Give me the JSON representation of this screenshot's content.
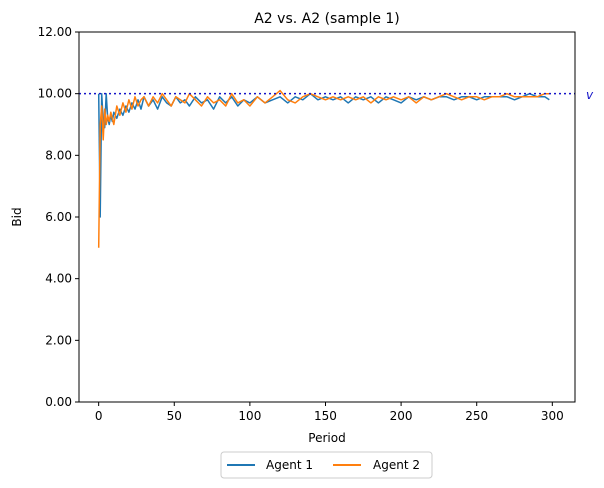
{
  "chart_data": {
    "type": "line",
    "title": "A2 vs. A2 (sample 1)",
    "xlabel": "Period",
    "ylabel": "Bid",
    "xlim": [
      -13,
      315
    ],
    "ylim": [
      0,
      12
    ],
    "x_ticks": [
      0,
      50,
      100,
      150,
      200,
      250,
      300
    ],
    "y_ticks": [
      0,
      2,
      4,
      6,
      8,
      10,
      12
    ],
    "y_tick_labels": [
      "0.00",
      "2.00",
      "4.00",
      "6.00",
      "8.00",
      "10.00",
      "12.00"
    ],
    "grid": false,
    "legend_placement": "bottom-center",
    "reference_line": {
      "y": 10.0,
      "label": "v",
      "style": "dotted",
      "color": "#1414c8"
    },
    "series": [
      {
        "name": "Agent 1",
        "color": "#1f77b4",
        "x": [
          0,
          1,
          2,
          3,
          4,
          5,
          6,
          7,
          8,
          9,
          10,
          12,
          14,
          16,
          18,
          20,
          22,
          24,
          26,
          28,
          30,
          33,
          36,
          39,
          42,
          45,
          48,
          51,
          54,
          57,
          60,
          64,
          68,
          72,
          76,
          80,
          84,
          88,
          92,
          96,
          100,
          105,
          110,
          115,
          120,
          125,
          130,
          135,
          140,
          145,
          150,
          155,
          160,
          165,
          170,
          175,
          180,
          185,
          190,
          195,
          200,
          205,
          210,
          215,
          220,
          225,
          230,
          235,
          240,
          245,
          250,
          255,
          260,
          265,
          270,
          275,
          280,
          285,
          290,
          295,
          298
        ],
        "y": [
          10.0,
          6.0,
          10.0,
          9.1,
          8.9,
          10.0,
          9.2,
          9.0,
          9.3,
          9.1,
          9.4,
          9.2,
          9.5,
          9.3,
          9.6,
          9.4,
          9.7,
          9.5,
          9.8,
          9.5,
          9.9,
          9.6,
          9.8,
          9.5,
          9.9,
          9.7,
          9.6,
          9.9,
          9.7,
          9.8,
          9.6,
          9.9,
          9.7,
          9.8,
          9.5,
          9.9,
          9.7,
          9.9,
          9.6,
          9.8,
          9.7,
          9.9,
          9.7,
          9.8,
          9.9,
          9.7,
          9.9,
          9.8,
          10.0,
          9.8,
          9.9,
          9.8,
          9.9,
          9.7,
          9.9,
          9.8,
          9.9,
          9.7,
          9.9,
          9.8,
          9.7,
          9.9,
          9.8,
          9.9,
          9.8,
          9.9,
          9.9,
          9.8,
          9.9,
          9.9,
          9.8,
          9.9,
          9.9,
          9.9,
          9.9,
          9.8,
          9.9,
          10.0,
          9.9,
          9.9,
          9.8
        ]
      },
      {
        "name": "Agent 2",
        "color": "#ff7f0e",
        "x": [
          0,
          1,
          2,
          3,
          4,
          5,
          6,
          7,
          8,
          9,
          10,
          12,
          14,
          16,
          18,
          20,
          22,
          24,
          26,
          28,
          30,
          33,
          36,
          39,
          42,
          45,
          48,
          51,
          54,
          57,
          60,
          64,
          68,
          72,
          76,
          80,
          84,
          88,
          92,
          96,
          100,
          105,
          110,
          115,
          120,
          125,
          130,
          135,
          140,
          145,
          150,
          155,
          160,
          165,
          170,
          175,
          180,
          185,
          190,
          195,
          200,
          205,
          210,
          215,
          220,
          225,
          230,
          235,
          240,
          245,
          250,
          255,
          260,
          265,
          270,
          275,
          280,
          285,
          290,
          295,
          298
        ],
        "y": [
          5.0,
          9.0,
          9.6,
          8.5,
          9.5,
          9.0,
          9.3,
          9.1,
          9.4,
          9.2,
          9.0,
          9.6,
          9.3,
          9.7,
          9.4,
          9.8,
          9.5,
          9.9,
          9.6,
          9.8,
          9.9,
          9.6,
          9.9,
          9.7,
          10.0,
          9.8,
          9.6,
          9.9,
          9.8,
          9.7,
          10.0,
          9.8,
          9.6,
          9.9,
          9.7,
          9.8,
          9.6,
          10.0,
          9.7,
          9.8,
          9.6,
          9.9,
          9.7,
          9.9,
          10.1,
          9.8,
          9.7,
          9.9,
          10.0,
          9.9,
          9.8,
          9.9,
          9.8,
          9.9,
          9.8,
          9.9,
          9.7,
          9.9,
          9.8,
          9.9,
          9.8,
          9.9,
          9.7,
          9.9,
          9.8,
          9.9,
          10.0,
          9.9,
          9.8,
          9.9,
          9.9,
          9.8,
          9.9,
          9.9,
          10.0,
          9.9,
          9.9,
          9.9,
          9.9,
          10.0,
          10.0
        ]
      }
    ]
  }
}
